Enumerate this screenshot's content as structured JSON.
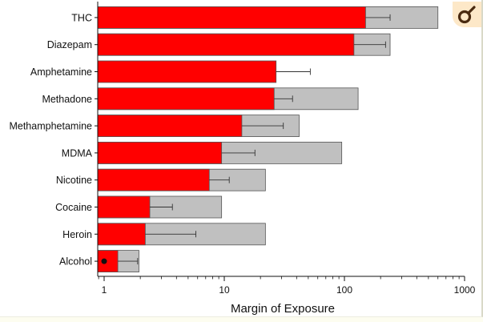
{
  "chart_data": {
    "type": "bar",
    "orientation": "horizontal",
    "scale": "log",
    "xlabel": "Margin of Exposure",
    "xlim": [
      0.8,
      1000
    ],
    "xticks": [
      {
        "value": 1,
        "label": "1"
      },
      {
        "value": 10,
        "label": "10"
      },
      {
        "value": 100,
        "label": "100"
      },
      {
        "value": 1000,
        "label": "1000"
      }
    ],
    "categories": [
      "THC",
      "Diazepam",
      "Amphetamine",
      "Methadone",
      "Methamphetamine",
      "MDMA",
      "Nicotine",
      "Cocaine",
      "Heroin",
      "Alcohol"
    ],
    "series": [
      {
        "color": "#ff0000",
        "values": [
          150,
          120,
          27,
          26,
          14,
          9.5,
          7.5,
          2.4,
          2.2,
          1.3
        ],
        "error_high": [
          240,
          220,
          52,
          37,
          31,
          18,
          11,
          3.7,
          5.8,
          1.9
        ]
      },
      {
        "color": "#c0c0c0",
        "values": [
          600,
          240,
          null,
          130,
          42,
          95,
          22,
          9.5,
          22,
          1.95
        ]
      }
    ],
    "markers": [
      {
        "category": "Alcohol",
        "value": 1.0,
        "color": "#111111"
      }
    ],
    "grid": false
  },
  "badge": {
    "icon": "gender-symbol-icon",
    "color": "#4a2a10"
  }
}
